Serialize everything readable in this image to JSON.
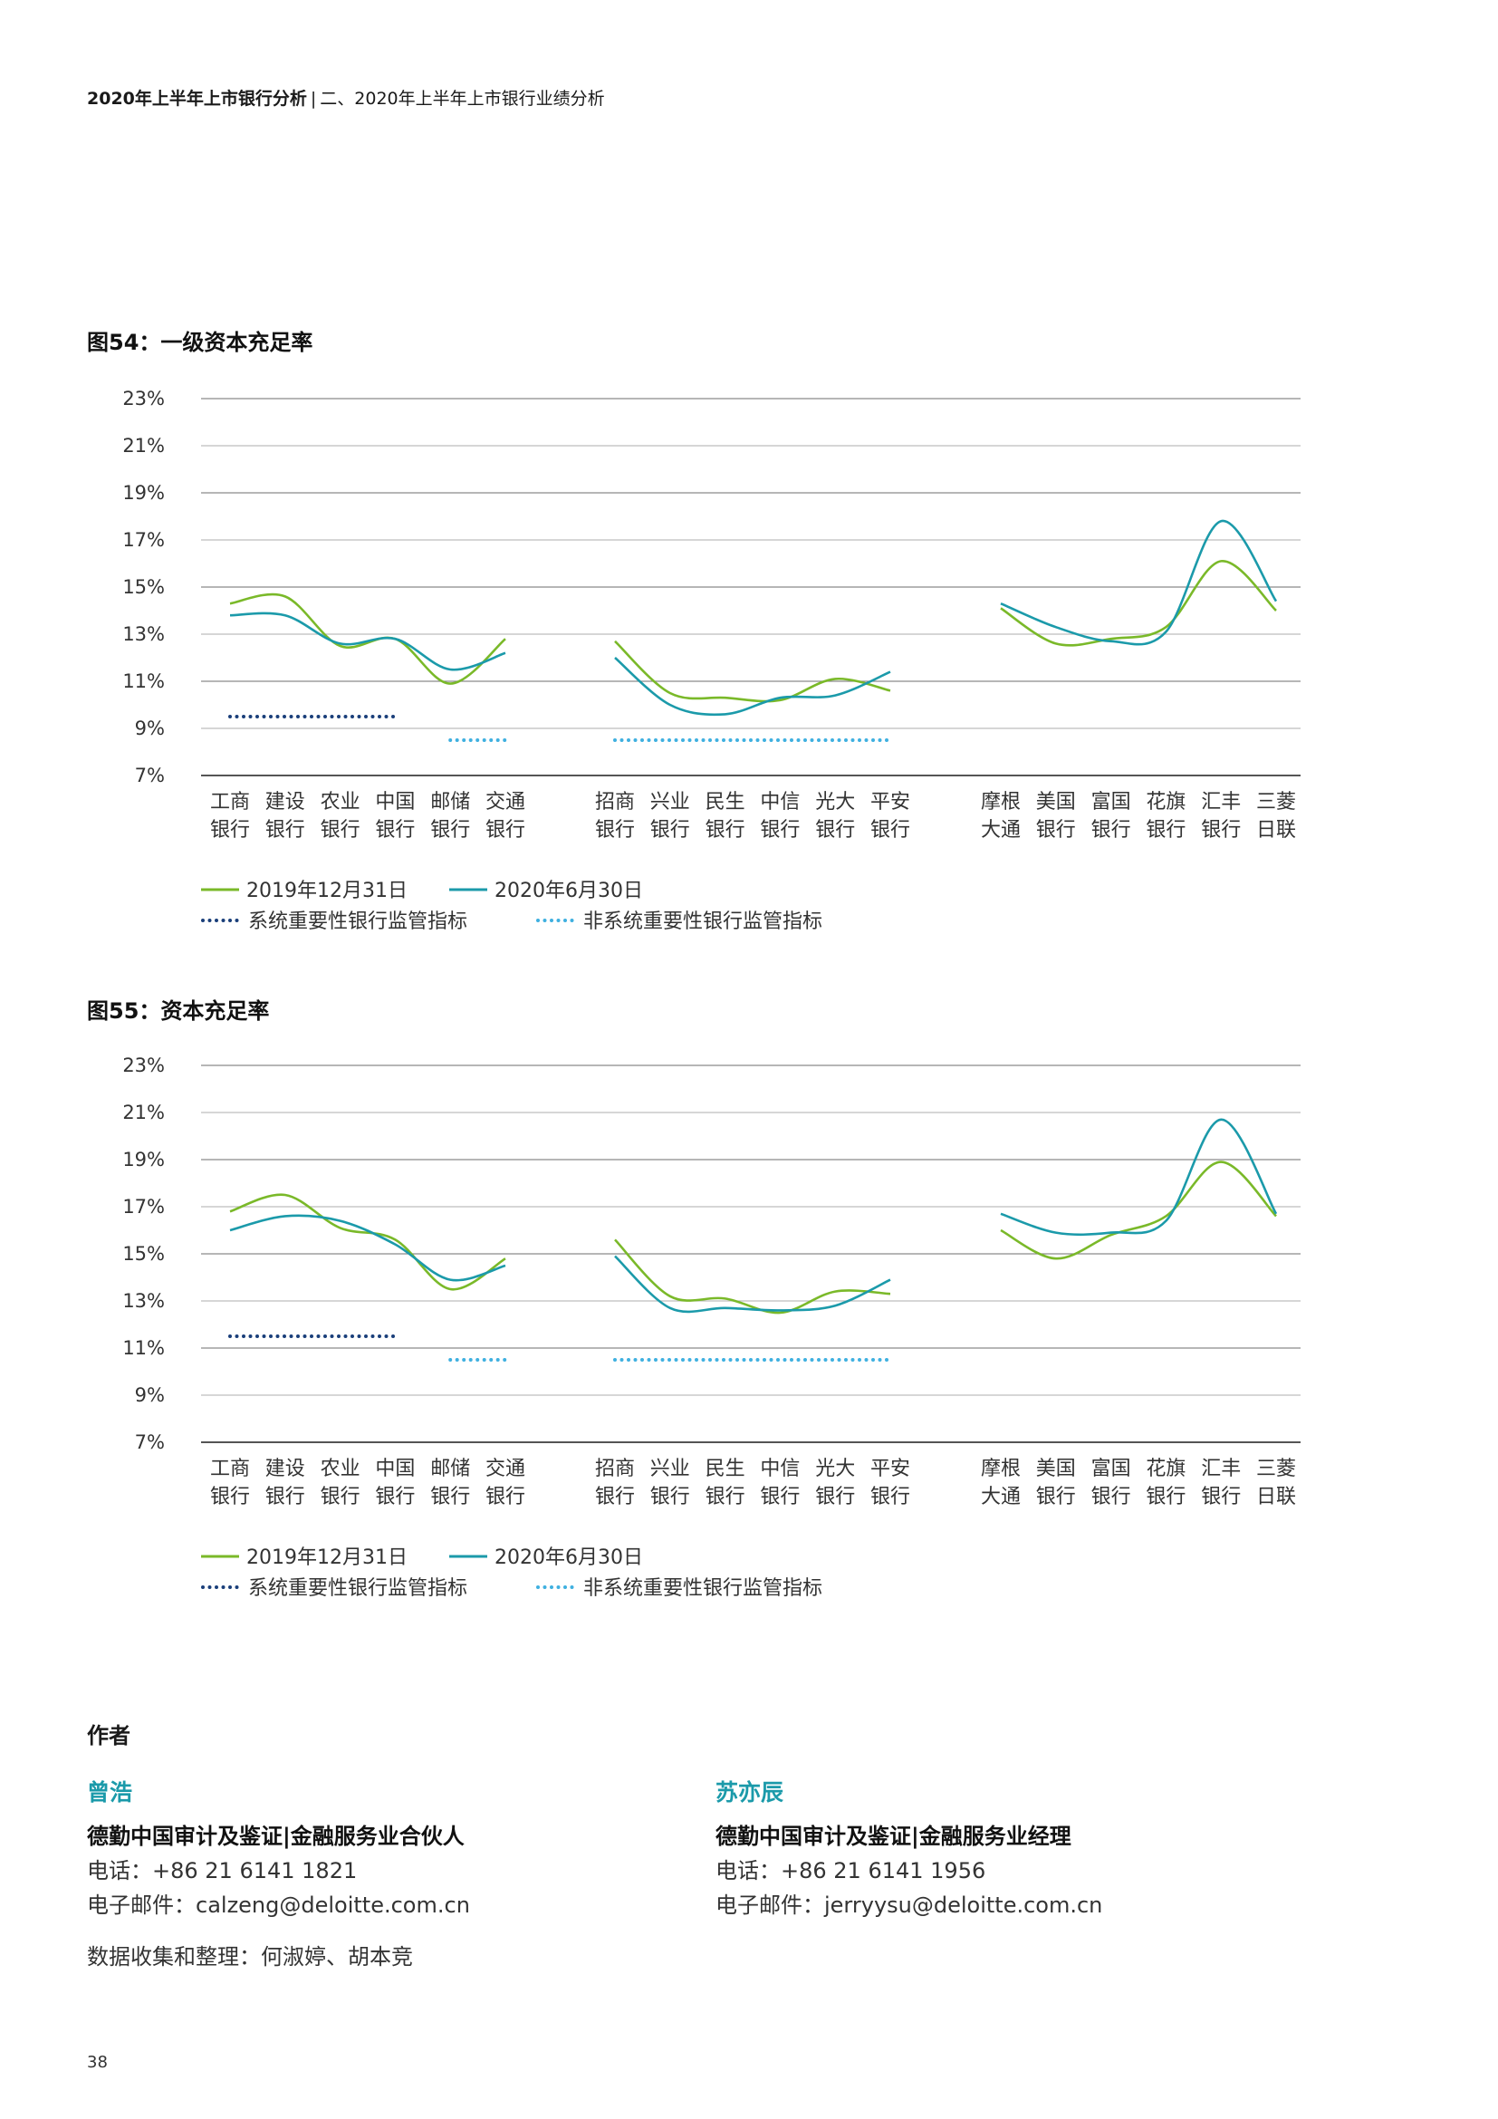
{
  "header": {
    "report": "2020年上半年上市银行分析",
    "section": "二、2020年上半年上市银行业绩分析"
  },
  "chart_data": [
    {
      "type": "line",
      "title": "图54：一级资本充足率",
      "ylim": [
        7,
        23
      ],
      "yticks": [
        "23%",
        "21%",
        "19%",
        "17%",
        "15%",
        "13%",
        "11%",
        "9%",
        "7%"
      ],
      "groups": [
        {
          "categories": [
            [
              "工商",
              "银行"
            ],
            [
              "建设",
              "银行"
            ],
            [
              "农业",
              "银行"
            ],
            [
              "中国",
              "银行"
            ],
            [
              "邮储",
              "银行"
            ],
            [
              "交通",
              "银行"
            ]
          ]
        },
        {
          "categories": [
            [
              "招商",
              "银行"
            ],
            [
              "兴业",
              "银行"
            ],
            [
              "民生",
              "银行"
            ],
            [
              "中信",
              "银行"
            ],
            [
              "光大",
              "银行"
            ],
            [
              "平安",
              "银行"
            ]
          ]
        },
        {
          "categories": [
            [
              "摩根",
              "大通"
            ],
            [
              "美国",
              "银行"
            ],
            [
              "富国",
              "银行"
            ],
            [
              "花旗",
              "银行"
            ],
            [
              "汇丰",
              "银行"
            ],
            [
              "三菱",
              "日联"
            ]
          ]
        }
      ],
      "series": [
        {
          "name": "2019年12月31日",
          "color": "#7ab929",
          "groups": [
            [
              14.3,
              14.6,
              12.5,
              12.8,
              10.9,
              12.8
            ],
            [
              12.7,
              10.5,
              10.3,
              10.2,
              11.1,
              10.6
            ],
            [
              14.1,
              12.6,
              12.8,
              13.3,
              16.1,
              14.0
            ]
          ]
        },
        {
          "name": "2020年6月30日",
          "color": "#1b9aaa",
          "groups": [
            [
              13.8,
              13.8,
              12.6,
              12.8,
              11.5,
              12.2
            ],
            [
              12.0,
              10.0,
              9.6,
              10.3,
              10.4,
              11.4
            ],
            [
              14.3,
              13.3,
              12.7,
              13.1,
              17.8,
              14.4
            ]
          ]
        }
      ],
      "reference_lines": [
        {
          "name": "系统重要性银行监管指标",
          "color": "#1a3f7a",
          "value": 9.5,
          "span": [
            0,
            3
          ]
        },
        {
          "name": "非系统重要性银行监管指标",
          "color": "#3fb0e0",
          "value": 8.5,
          "segments": [
            [
              4,
              5
            ],
            [
              6,
              11
            ]
          ]
        }
      ]
    },
    {
      "type": "line",
      "title": "图55：资本充足率",
      "ylim": [
        7,
        23
      ],
      "yticks": [
        "23%",
        "21%",
        "19%",
        "17%",
        "15%",
        "13%",
        "11%",
        "9%",
        "7%"
      ],
      "groups": [
        {
          "categories": [
            [
              "工商",
              "银行"
            ],
            [
              "建设",
              "银行"
            ],
            [
              "农业",
              "银行"
            ],
            [
              "中国",
              "银行"
            ],
            [
              "邮储",
              "银行"
            ],
            [
              "交通",
              "银行"
            ]
          ]
        },
        {
          "categories": [
            [
              "招商",
              "银行"
            ],
            [
              "兴业",
              "银行"
            ],
            [
              "民生",
              "银行"
            ],
            [
              "中信",
              "银行"
            ],
            [
              "光大",
              "银行"
            ],
            [
              "平安",
              "银行"
            ]
          ]
        },
        {
          "categories": [
            [
              "摩根",
              "大通"
            ],
            [
              "美国",
              "银行"
            ],
            [
              "富国",
              "银行"
            ],
            [
              "花旗",
              "银行"
            ],
            [
              "汇丰",
              "银行"
            ],
            [
              "三菱",
              "日联"
            ]
          ]
        }
      ],
      "series": [
        {
          "name": "2019年12月31日",
          "color": "#7ab929",
          "groups": [
            [
              16.8,
              17.5,
              16.1,
              15.6,
              13.5,
              14.8
            ],
            [
              15.6,
              13.2,
              13.1,
              12.5,
              13.4,
              13.3
            ],
            [
              16.0,
              14.8,
              15.8,
              16.6,
              18.9,
              16.6
            ]
          ]
        },
        {
          "name": "2020年6月30日",
          "color": "#1b9aaa",
          "groups": [
            [
              16.0,
              16.6,
              16.4,
              15.4,
              13.9,
              14.5
            ],
            [
              14.9,
              12.7,
              12.7,
              12.6,
              12.8,
              13.9
            ],
            [
              16.7,
              15.9,
              15.9,
              16.4,
              20.7,
              16.7
            ]
          ]
        }
      ],
      "reference_lines": [
        {
          "name": "系统重要性银行监管指标",
          "color": "#1a3f7a",
          "value": 11.5,
          "span": [
            0,
            3
          ]
        },
        {
          "name": "非系统重要性银行监管指标",
          "color": "#3fb0e0",
          "value": 10.5,
          "segments": [
            [
              4,
              5
            ],
            [
              6,
              11
            ]
          ]
        }
      ]
    }
  ],
  "authors_title": "作者",
  "authors": [
    {
      "name": "曾浩",
      "role": "德勤中国审计及鉴证|金融服务业合伙人",
      "phone": "电话：+86 21 6141 1821",
      "email": "电子邮件：calzeng@deloitte.com.cn"
    },
    {
      "name": "苏亦辰",
      "role": "德勤中国审计及鉴证|金融服务业经理",
      "phone": "电话：+86 21 6141 1956",
      "email": "电子邮件：jerryysu@deloitte.com.cn"
    }
  ],
  "data_collection": "数据收集和整理：何淑婷、胡本竞",
  "page_number": "38"
}
